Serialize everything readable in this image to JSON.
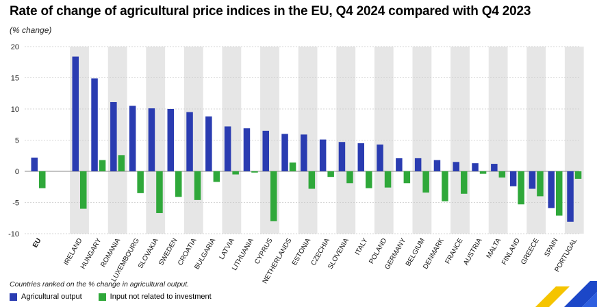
{
  "title": "Rate of change of agricultural price indices in the EU, Q4 2024 compared with Q4 2023",
  "subtitle": "(% change)",
  "footnote": "Countries ranked on the % change in agricultural output.",
  "colors": {
    "agricultural_output": "#2a3cb1",
    "input_not_related": "#2fa83a",
    "band": "#e6e6e6",
    "grid": "#c9c9c9"
  },
  "legend": [
    {
      "label": "Agricultural output",
      "color": "#2a3cb1"
    },
    {
      "label": "Input not related to investment",
      "color": "#2fa83a"
    }
  ],
  "chart_data": {
    "type": "bar",
    "title": "Rate of change of agricultural price indices in the EU, Q4 2024 compared with Q4 2023",
    "ylabel": "(% change)",
    "ylim": [
      -10,
      20
    ],
    "yticks": [
      20,
      15,
      10,
      5,
      0,
      -5,
      -10
    ],
    "grid": true,
    "legend_position": "bottom-left",
    "categories": [
      "EU",
      "IRELAND",
      "HUNGARY",
      "ROMANIA",
      "LUXEMBOURG",
      "SLOVAKIA",
      "SWEDEN",
      "CROATIA",
      "BULGARIA",
      "LATVIA",
      "LITHUANIA",
      "CYPRUS",
      "NETHERLANDS",
      "ESTONIA",
      "CZECHIA",
      "SLOVENIA",
      "ITALY",
      "POLAND",
      "GERMANY",
      "BELGIUM",
      "DENMARK",
      "FRANCE",
      "AUSTRIA",
      "MALTA",
      "FINLAND",
      "GREECE",
      "SPAIN",
      "PORTUGAL"
    ],
    "series": [
      {
        "name": "Agricultural output",
        "values": [
          2.2,
          18.4,
          14.9,
          11.1,
          10.5,
          10.1,
          10.0,
          9.5,
          8.8,
          7.2,
          6.9,
          6.5,
          6.0,
          5.9,
          5.1,
          4.7,
          4.5,
          4.3,
          2.1,
          2.1,
          1.8,
          1.5,
          1.3,
          1.2,
          -2.4,
          -2.8,
          -5.9,
          -8.1
        ]
      },
      {
        "name": "Input not related to investment",
        "values": [
          -2.7,
          -6.0,
          1.8,
          2.6,
          -3.5,
          -6.7,
          -4.1,
          -4.6,
          -1.7,
          -0.5,
          -0.2,
          -8.0,
          1.4,
          -2.8,
          -0.9,
          -1.9,
          -2.7,
          -2.6,
          -1.9,
          -3.4,
          -4.8,
          -3.6,
          -0.4,
          -1.0,
          -5.3,
          -4.0,
          -7.1,
          -1.2
        ]
      }
    ]
  }
}
